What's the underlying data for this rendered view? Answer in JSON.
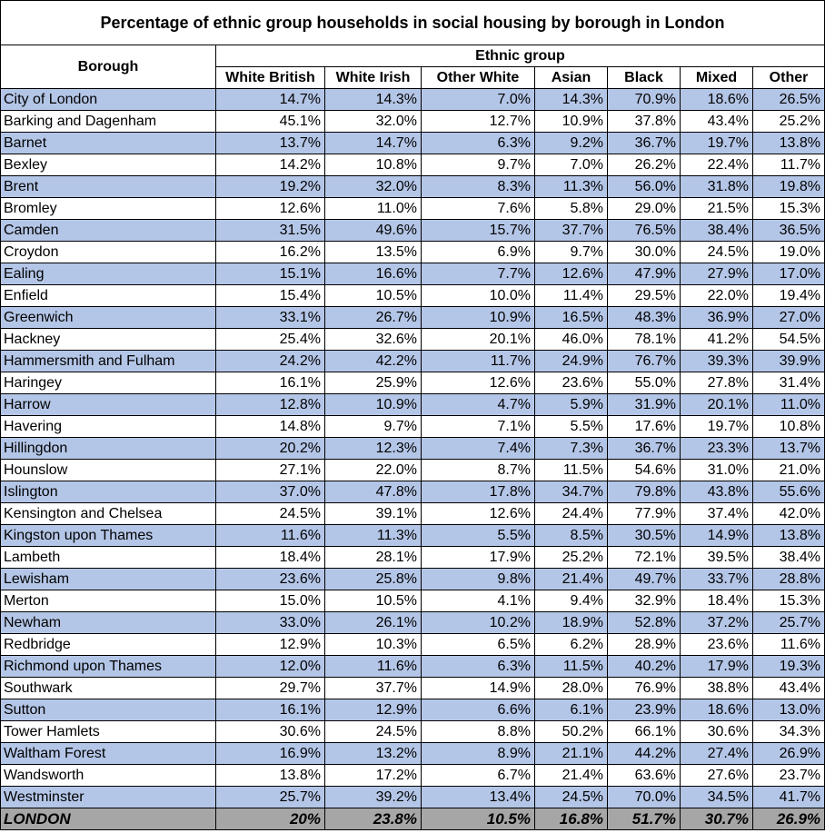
{
  "title": "Percentage of ethnic group households in social housing by borough in London",
  "header": {
    "borough_label": "Borough",
    "group_label": "Ethnic group",
    "columns": [
      "White British",
      "White Irish",
      "Other White",
      "Asian",
      "Black",
      "Mixed",
      "Other"
    ]
  },
  "rows": [
    {
      "borough": "City of London",
      "values": [
        "14.7%",
        "14.3%",
        "7.0%",
        "14.3%",
        "70.9%",
        "18.6%",
        "26.5%"
      ]
    },
    {
      "borough": "Barking and Dagenham",
      "values": [
        "45.1%",
        "32.0%",
        "12.7%",
        "10.9%",
        "37.8%",
        "43.4%",
        "25.2%"
      ]
    },
    {
      "borough": "Barnet",
      "values": [
        "13.7%",
        "14.7%",
        "6.3%",
        "9.2%",
        "36.7%",
        "19.7%",
        "13.8%"
      ]
    },
    {
      "borough": "Bexley",
      "values": [
        "14.2%",
        "10.8%",
        "9.7%",
        "7.0%",
        "26.2%",
        "22.4%",
        "11.7%"
      ]
    },
    {
      "borough": "Brent",
      "values": [
        "19.2%",
        "32.0%",
        "8.3%",
        "11.3%",
        "56.0%",
        "31.8%",
        "19.8%"
      ]
    },
    {
      "borough": "Bromley",
      "values": [
        "12.6%",
        "11.0%",
        "7.6%",
        "5.8%",
        "29.0%",
        "21.5%",
        "15.3%"
      ]
    },
    {
      "borough": "Camden",
      "values": [
        "31.5%",
        "49.6%",
        "15.7%",
        "37.7%",
        "76.5%",
        "38.4%",
        "36.5%"
      ]
    },
    {
      "borough": "Croydon",
      "values": [
        "16.2%",
        "13.5%",
        "6.9%",
        "9.7%",
        "30.0%",
        "24.5%",
        "19.0%"
      ]
    },
    {
      "borough": "Ealing",
      "values": [
        "15.1%",
        "16.6%",
        "7.7%",
        "12.6%",
        "47.9%",
        "27.9%",
        "17.0%"
      ]
    },
    {
      "borough": "Enfield",
      "values": [
        "15.4%",
        "10.5%",
        "10.0%",
        "11.4%",
        "29.5%",
        "22.0%",
        "19.4%"
      ]
    },
    {
      "borough": "Greenwich",
      "values": [
        "33.1%",
        "26.7%",
        "10.9%",
        "16.5%",
        "48.3%",
        "36.9%",
        "27.0%"
      ]
    },
    {
      "borough": "Hackney",
      "values": [
        "25.4%",
        "32.6%",
        "20.1%",
        "46.0%",
        "78.1%",
        "41.2%",
        "54.5%"
      ]
    },
    {
      "borough": "Hammersmith and Fulham",
      "values": [
        "24.2%",
        "42.2%",
        "11.7%",
        "24.9%",
        "76.7%",
        "39.3%",
        "39.9%"
      ]
    },
    {
      "borough": "Haringey",
      "values": [
        "16.1%",
        "25.9%",
        "12.6%",
        "23.6%",
        "55.0%",
        "27.8%",
        "31.4%"
      ]
    },
    {
      "borough": "Harrow",
      "values": [
        "12.8%",
        "10.9%",
        "4.7%",
        "5.9%",
        "31.9%",
        "20.1%",
        "11.0%"
      ]
    },
    {
      "borough": "Havering",
      "values": [
        "14.8%",
        "9.7%",
        "7.1%",
        "5.5%",
        "17.6%",
        "19.7%",
        "10.8%"
      ]
    },
    {
      "borough": "Hillingdon",
      "values": [
        "20.2%",
        "12.3%",
        "7.4%",
        "7.3%",
        "36.7%",
        "23.3%",
        "13.7%"
      ]
    },
    {
      "borough": "Hounslow",
      "values": [
        "27.1%",
        "22.0%",
        "8.7%",
        "11.5%",
        "54.6%",
        "31.0%",
        "21.0%"
      ]
    },
    {
      "borough": "Islington",
      "values": [
        "37.0%",
        "47.8%",
        "17.8%",
        "34.7%",
        "79.8%",
        "43.8%",
        "55.6%"
      ]
    },
    {
      "borough": "Kensington and Chelsea",
      "values": [
        "24.5%",
        "39.1%",
        "12.6%",
        "24.4%",
        "77.9%",
        "37.4%",
        "42.0%"
      ]
    },
    {
      "borough": "Kingston upon Thames",
      "values": [
        "11.6%",
        "11.3%",
        "5.5%",
        "8.5%",
        "30.5%",
        "14.9%",
        "13.8%"
      ]
    },
    {
      "borough": "Lambeth",
      "values": [
        "18.4%",
        "28.1%",
        "17.9%",
        "25.2%",
        "72.1%",
        "39.5%",
        "38.4%"
      ]
    },
    {
      "borough": "Lewisham",
      "values": [
        "23.6%",
        "25.8%",
        "9.8%",
        "21.4%",
        "49.7%",
        "33.7%",
        "28.8%"
      ]
    },
    {
      "borough": "Merton",
      "values": [
        "15.0%",
        "10.5%",
        "4.1%",
        "9.4%",
        "32.9%",
        "18.4%",
        "15.3%"
      ]
    },
    {
      "borough": "Newham",
      "values": [
        "33.0%",
        "26.1%",
        "10.2%",
        "18.9%",
        "52.8%",
        "37.2%",
        "25.7%"
      ]
    },
    {
      "borough": "Redbridge",
      "values": [
        "12.9%",
        "10.3%",
        "6.5%",
        "6.2%",
        "28.9%",
        "23.6%",
        "11.6%"
      ]
    },
    {
      "borough": "Richmond upon Thames",
      "values": [
        "12.0%",
        "11.6%",
        "6.3%",
        "11.5%",
        "40.2%",
        "17.9%",
        "19.3%"
      ]
    },
    {
      "borough": "Southwark",
      "values": [
        "29.7%",
        "37.7%",
        "14.9%",
        "28.0%",
        "76.9%",
        "38.8%",
        "43.4%"
      ]
    },
    {
      "borough": "Sutton",
      "values": [
        "16.1%",
        "12.9%",
        "6.6%",
        "6.1%",
        "23.9%",
        "18.6%",
        "13.0%"
      ]
    },
    {
      "borough": "Tower Hamlets",
      "values": [
        "30.6%",
        "24.5%",
        "8.8%",
        "50.2%",
        "66.1%",
        "30.6%",
        "34.3%"
      ]
    },
    {
      "borough": "Waltham Forest",
      "values": [
        "16.9%",
        "13.2%",
        "8.9%",
        "21.1%",
        "44.2%",
        "27.4%",
        "26.9%"
      ]
    },
    {
      "borough": "Wandsworth",
      "values": [
        "13.8%",
        "17.2%",
        "6.7%",
        "21.4%",
        "63.6%",
        "27.6%",
        "23.7%"
      ]
    },
    {
      "borough": "Westminster",
      "values": [
        "25.7%",
        "39.2%",
        "13.4%",
        "24.5%",
        "70.0%",
        "34.5%",
        "41.7%"
      ]
    }
  ],
  "total": {
    "borough": "LONDON",
    "values": [
      "20%",
      "23.8%",
      "10.5%",
      "16.8%",
      "51.7%",
      "30.7%",
      "26.9%"
    ]
  },
  "colors": {
    "band_row": "#b4c6e7",
    "plain_row": "#ffffff",
    "total_row": "#a6a6a6",
    "border": "#000000"
  }
}
